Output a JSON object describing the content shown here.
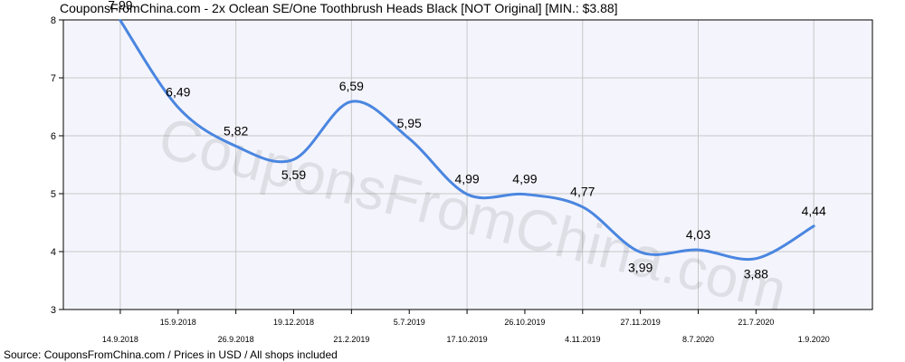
{
  "title": "CouponsFromChina.com - 2x Oclean SE/One Toothbrush Heads Black [NOT Original] [MIN.: $3.88]",
  "source": "Source: CouponsFromChina.com / Prices in USD / All shops included",
  "watermark": "CouponsFromChina.com",
  "colors": {
    "line": "#4a86e0",
    "plot_background": "#f4f4fc",
    "grid": "#c8c8c8"
  },
  "chart_data": {
    "type": "line",
    "categories": [
      "14.9.2018",
      "15.9.2018",
      "26.9.2018",
      "19.12.2018",
      "21.2.2019",
      "5.7.2019",
      "17.10.2019",
      "26.10.2019",
      "4.11.2019",
      "27.11.2019",
      "8.7.2020",
      "21.7.2020",
      "1.9.2020"
    ],
    "values": [
      7.99,
      6.49,
      5.82,
      5.59,
      6.59,
      5.95,
      4.99,
      4.99,
      4.77,
      3.99,
      4.03,
      3.88,
      4.44
    ],
    "value_labels": [
      "7,99",
      "6,49",
      "5,82",
      "5,59",
      "6,59",
      "5,95",
      "4,99",
      "4,99",
      "4,77",
      "3,99",
      "4,03",
      "3,88",
      "4,44"
    ],
    "ylim": [
      3,
      8
    ],
    "yticks": [
      3,
      4,
      5,
      6,
      7,
      8
    ],
    "grid": true,
    "legend": "none"
  }
}
